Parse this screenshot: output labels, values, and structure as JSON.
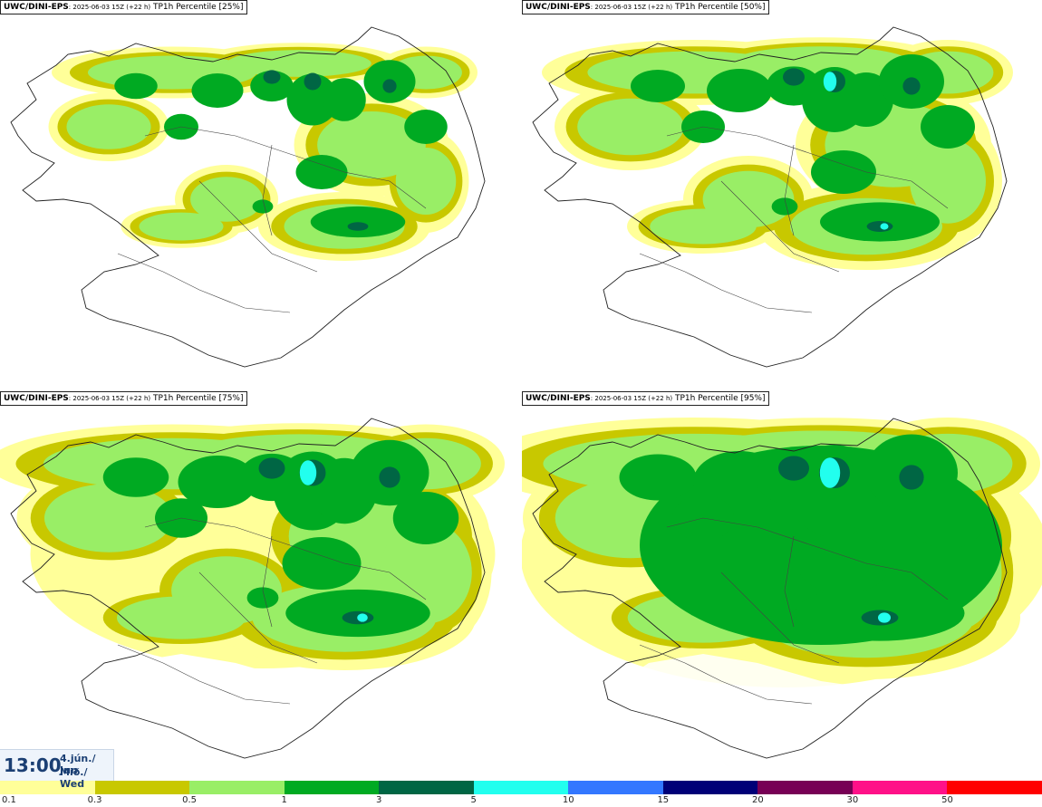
{
  "panels": [
    {
      "model": "UWC/DINI-EPS",
      "run": ": 2025-06-03 15Z (+22 h)",
      "product": " TP1h Percentile [25%]",
      "level": 1
    },
    {
      "model": "UWC/DINI-EPS",
      "run": ": 2025-06-03 15Z (+22 h)",
      "product": " TP1h Percentile [50%]",
      "level": 2
    },
    {
      "model": "UWC/DINI-EPS",
      "run": ": 2025-06-03 15Z (+22 h)",
      "product": " TP1h Percentile [75%]",
      "level": 3
    },
    {
      "model": "UWC/DINI-EPS",
      "run": ": 2025-06-03 15Z (+22 h)",
      "product": " TP1h Percentile [95%]",
      "level": 4
    }
  ],
  "valid_time": {
    "time": "13:00",
    "date_line1": "4.jún./ Jun",
    "date_line2": "Mið./ Wed"
  },
  "legend": {
    "colors": [
      "#ffff99",
      "#c8c800",
      "#99ee66",
      "#00aa22",
      "#006644",
      "#22ffee",
      "#3377ff",
      "#000077",
      "#770055",
      "#ff1188",
      "#ff0000"
    ],
    "labels": [
      "0.1",
      "0.3",
      "0.5",
      "1",
      "3",
      "5",
      "10",
      "15",
      "20",
      "30",
      "50"
    ]
  }
}
